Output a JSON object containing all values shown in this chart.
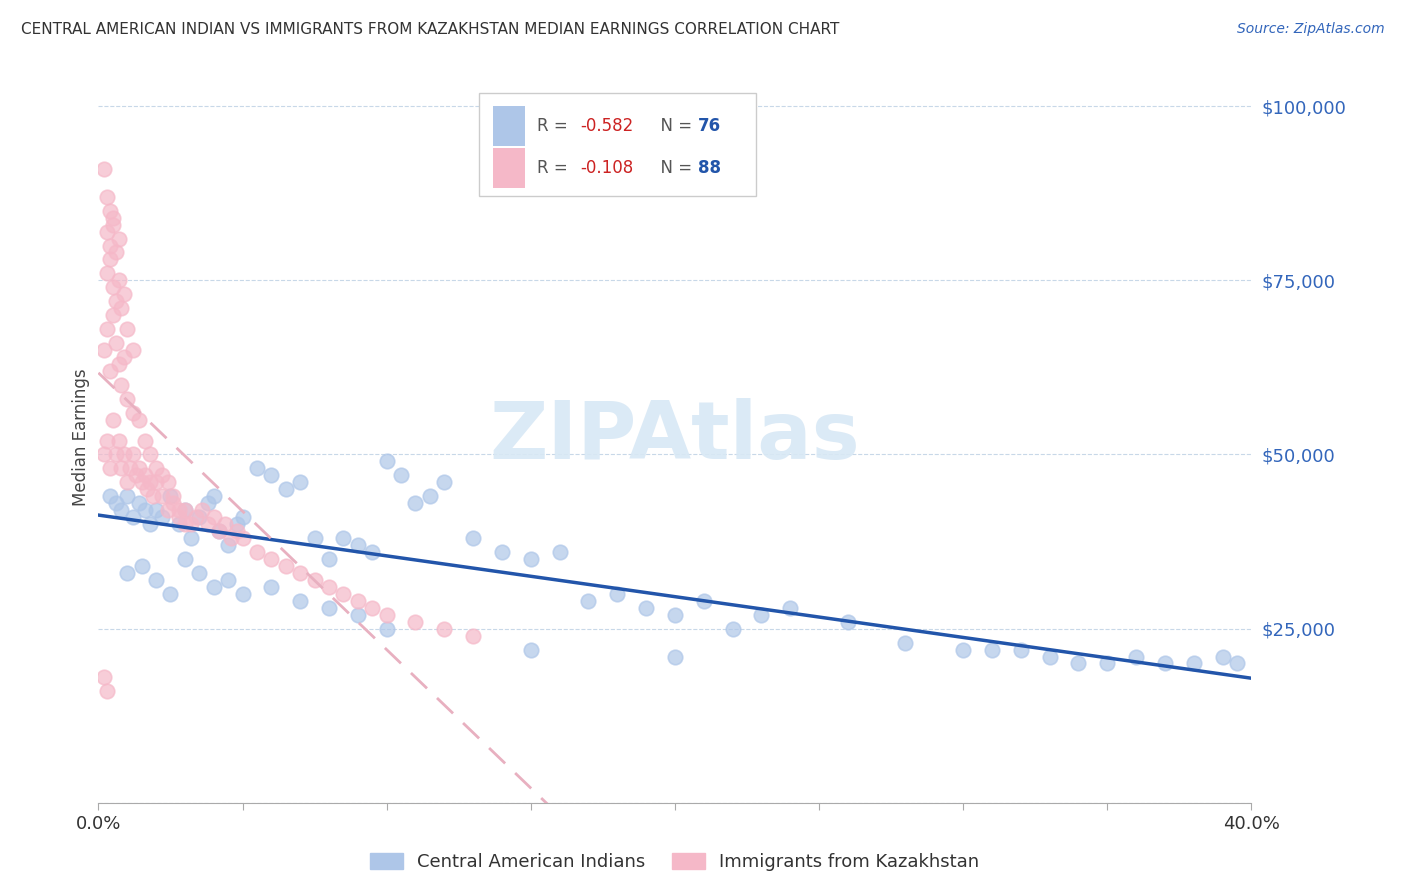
{
  "title": "CENTRAL AMERICAN INDIAN VS IMMIGRANTS FROM KAZAKHSTAN MEDIAN EARNINGS CORRELATION CHART",
  "source": "Source: ZipAtlas.com",
  "ylabel": "Median Earnings",
  "xlim": [
    0.0,
    0.4
  ],
  "ylim": [
    0,
    105000
  ],
  "yticks": [
    0,
    25000,
    50000,
    75000,
    100000
  ],
  "scatter_blue_color": "#aec6e8",
  "scatter_pink_color": "#f5b8c8",
  "trendline_blue_color": "#2255aa",
  "trendline_pink_color": "#e8b0c0",
  "watermark_color": "#d8e8f5",
  "watermark_text": "ZIPAtlas",
  "legend_R_color": "#cc2222",
  "legend_N_color": "#2255aa",
  "blue_x": [
    0.004,
    0.006,
    0.008,
    0.01,
    0.012,
    0.014,
    0.016,
    0.018,
    0.02,
    0.022,
    0.025,
    0.028,
    0.03,
    0.032,
    0.035,
    0.038,
    0.04,
    0.042,
    0.045,
    0.048,
    0.05,
    0.055,
    0.06,
    0.065,
    0.07,
    0.075,
    0.08,
    0.085,
    0.09,
    0.095,
    0.1,
    0.105,
    0.11,
    0.115,
    0.12,
    0.13,
    0.14,
    0.15,
    0.16,
    0.17,
    0.18,
    0.19,
    0.2,
    0.21,
    0.22,
    0.23,
    0.24,
    0.26,
    0.28,
    0.3,
    0.31,
    0.32,
    0.33,
    0.34,
    0.35,
    0.36,
    0.37,
    0.38,
    0.39,
    0.395,
    0.01,
    0.015,
    0.02,
    0.025,
    0.03,
    0.035,
    0.04,
    0.045,
    0.05,
    0.06,
    0.07,
    0.08,
    0.09,
    0.1,
    0.15,
    0.2
  ],
  "blue_y": [
    44000,
    43000,
    42000,
    44000,
    41000,
    43000,
    42000,
    40000,
    42000,
    41000,
    44000,
    40000,
    42000,
    38000,
    41000,
    43000,
    44000,
    39000,
    37000,
    40000,
    41000,
    48000,
    47000,
    45000,
    46000,
    38000,
    35000,
    38000,
    37000,
    36000,
    49000,
    47000,
    43000,
    44000,
    46000,
    38000,
    36000,
    35000,
    36000,
    29000,
    30000,
    28000,
    27000,
    29000,
    25000,
    27000,
    28000,
    26000,
    23000,
    22000,
    22000,
    22000,
    21000,
    20000,
    20000,
    21000,
    20000,
    20000,
    21000,
    20000,
    33000,
    34000,
    32000,
    30000,
    35000,
    33000,
    31000,
    32000,
    30000,
    31000,
    29000,
    28000,
    27000,
    25000,
    22000,
    21000
  ],
  "pink_x": [
    0.002,
    0.003,
    0.004,
    0.005,
    0.006,
    0.007,
    0.008,
    0.009,
    0.01,
    0.011,
    0.012,
    0.013,
    0.014,
    0.015,
    0.016,
    0.017,
    0.018,
    0.019,
    0.02,
    0.022,
    0.024,
    0.026,
    0.028,
    0.03,
    0.032,
    0.034,
    0.036,
    0.038,
    0.04,
    0.042,
    0.044,
    0.046,
    0.048,
    0.05,
    0.055,
    0.06,
    0.065,
    0.07,
    0.075,
    0.08,
    0.085,
    0.09,
    0.095,
    0.1,
    0.11,
    0.12,
    0.13,
    0.002,
    0.003,
    0.004,
    0.005,
    0.006,
    0.007,
    0.008,
    0.009,
    0.01,
    0.012,
    0.014,
    0.016,
    0.018,
    0.02,
    0.022,
    0.024,
    0.026,
    0.028,
    0.03,
    0.003,
    0.004,
    0.005,
    0.006,
    0.007,
    0.008,
    0.009,
    0.01,
    0.012,
    0.003,
    0.004,
    0.005,
    0.006,
    0.007,
    0.002,
    0.003,
    0.004,
    0.005,
    0.002,
    0.003
  ],
  "pink_y": [
    50000,
    52000,
    48000,
    55000,
    50000,
    52000,
    48000,
    50000,
    46000,
    48000,
    50000,
    47000,
    48000,
    46000,
    47000,
    45000,
    46000,
    44000,
    46000,
    44000,
    42000,
    43000,
    41000,
    42000,
    40000,
    41000,
    42000,
    40000,
    41000,
    39000,
    40000,
    38000,
    39000,
    38000,
    36000,
    35000,
    34000,
    33000,
    32000,
    31000,
    30000,
    29000,
    28000,
    27000,
    26000,
    25000,
    24000,
    65000,
    68000,
    62000,
    70000,
    66000,
    63000,
    60000,
    64000,
    58000,
    56000,
    55000,
    52000,
    50000,
    48000,
    47000,
    46000,
    44000,
    42000,
    40000,
    76000,
    78000,
    74000,
    72000,
    75000,
    71000,
    73000,
    68000,
    65000,
    82000,
    80000,
    84000,
    79000,
    81000,
    91000,
    87000,
    85000,
    83000,
    18000,
    16000
  ]
}
